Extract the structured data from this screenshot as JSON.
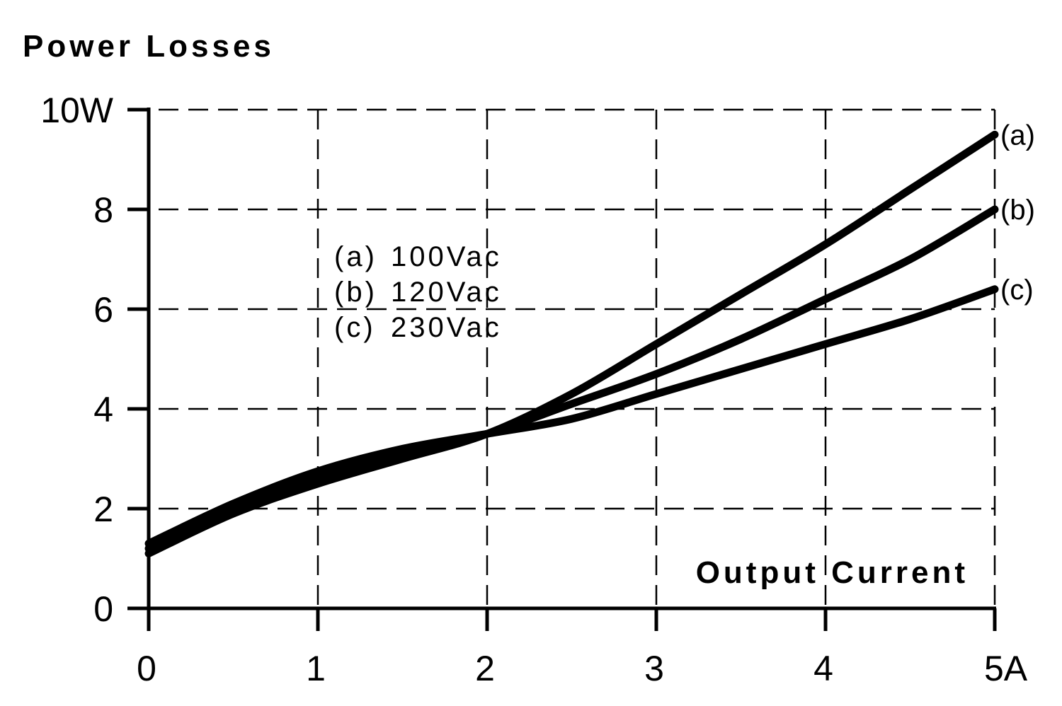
{
  "chart_data": {
    "type": "line",
    "title": "",
    "ylabel": "Power Losses",
    "xlabel": "Output Current",
    "xlim": [
      0,
      5
    ],
    "ylim": [
      0,
      10
    ],
    "grid": true,
    "x_ticks": [
      {
        "value": 0,
        "label": "0"
      },
      {
        "value": 1,
        "label": "1"
      },
      {
        "value": 2,
        "label": "2"
      },
      {
        "value": 3,
        "label": "3"
      },
      {
        "value": 4,
        "label": "4"
      },
      {
        "value": 5,
        "label": "5A"
      }
    ],
    "y_ticks": [
      {
        "value": 0,
        "label": "0"
      },
      {
        "value": 2,
        "label": "2"
      },
      {
        "value": 4,
        "label": "4"
      },
      {
        "value": 6,
        "label": "6"
      },
      {
        "value": 8,
        "label": "8"
      },
      {
        "value": 10,
        "label": "10W"
      }
    ],
    "legend": {
      "placement": "upper-left-center",
      "entries": [
        {
          "key": "(a)",
          "text": "100Vac"
        },
        {
          "key": "(b)",
          "text": "120Vac"
        },
        {
          "key": "(c)",
          "text": "230Vac"
        }
      ]
    },
    "series": [
      {
        "name": "(a)",
        "x": [
          0,
          0.5,
          1,
          1.5,
          2,
          2.5,
          3,
          3.5,
          4,
          4.5,
          5
        ],
        "y": [
          1.1,
          1.9,
          2.5,
          3.0,
          3.5,
          4.3,
          5.3,
          6.3,
          7.3,
          8.4,
          9.5
        ]
      },
      {
        "name": "(b)",
        "x": [
          0,
          0.5,
          1,
          1.5,
          2,
          2.5,
          3,
          3.5,
          4,
          4.5,
          5
        ],
        "y": [
          1.2,
          2.0,
          2.6,
          3.1,
          3.5,
          4.1,
          4.7,
          5.4,
          6.2,
          7.0,
          8.0
        ]
      },
      {
        "name": "(c)",
        "x": [
          0,
          0.5,
          1,
          1.5,
          2,
          2.5,
          3,
          3.5,
          4,
          4.5,
          5
        ],
        "y": [
          1.3,
          2.1,
          2.75,
          3.2,
          3.5,
          3.8,
          4.3,
          4.8,
          5.3,
          5.8,
          6.4
        ]
      }
    ]
  }
}
